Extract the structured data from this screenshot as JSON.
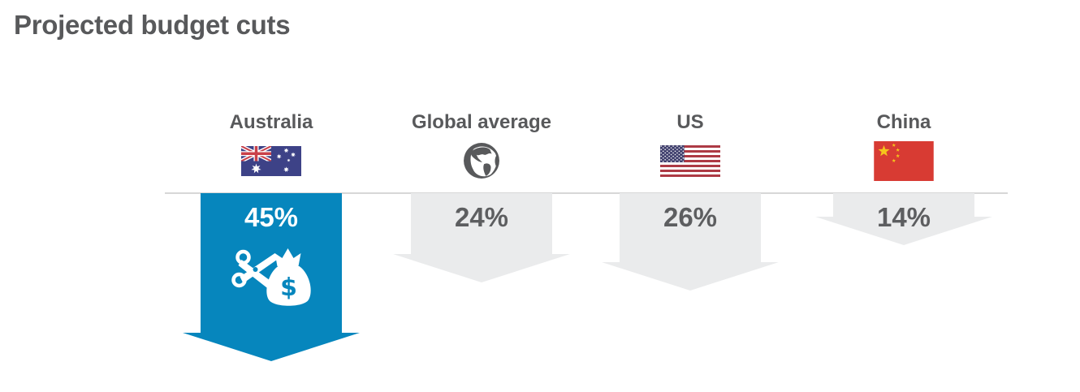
{
  "colors": {
    "highlight": "#0686bd",
    "muted_arrow": "#eaebec",
    "text": "#58595b",
    "pct_text_muted": "#5d5e60",
    "pct_text_highlight": "#ffffff",
    "baseline": "#d7d7d7"
  },
  "chart_data": {
    "type": "bar",
    "title": "Projected budget cuts",
    "orientation": "downward-arrows, length proportional to value",
    "unit": "%",
    "categories": [
      "Australia",
      "Global average",
      "US",
      "China"
    ],
    "values": [
      45,
      24,
      26,
      14
    ],
    "labels": [
      "45%",
      "24%",
      "26%",
      "14%"
    ],
    "icons": [
      "australia-flag",
      "globe",
      "us-flag",
      "china-flag"
    ],
    "highlighted_category": "Australia",
    "highlight_icon": "scissors-cutting-money-bag",
    "ylim": [
      0,
      45
    ],
    "legend": "none",
    "grid": "off"
  }
}
